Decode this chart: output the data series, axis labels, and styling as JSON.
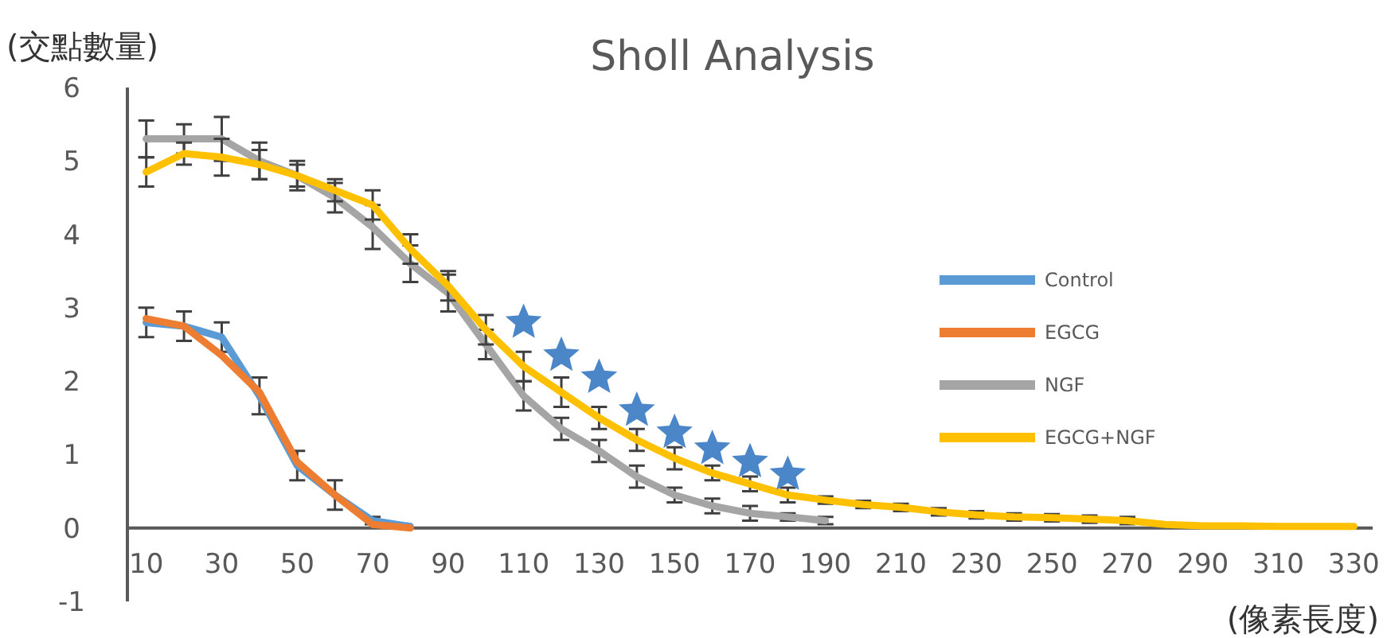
{
  "chart_data": {
    "type": "line",
    "title": "Sholl Analysis",
    "ylabel": "(交點數量)",
    "xlabel": "(像素長度)",
    "categories": [
      "10",
      null,
      "30",
      null,
      "50",
      null,
      "70",
      null,
      "90",
      null,
      "110",
      null,
      "130",
      null,
      "150",
      null,
      "170",
      null,
      "190",
      null,
      "210",
      null,
      "230",
      null,
      "250",
      null,
      "270",
      null,
      "290",
      null,
      "310",
      null,
      "330"
    ],
    "ylim": [
      -1,
      6
    ],
    "yticks": [
      -1,
      0,
      1,
      2,
      3,
      4,
      5,
      6
    ],
    "grid": false,
    "legend": "right",
    "line_style": "solid",
    "marker": "none",
    "series": [
      {
        "name": "Control",
        "color": "#5b9bd5",
        "values": [
          2.8,
          2.75,
          2.6,
          1.8,
          0.85,
          0.45,
          0.1,
          0.02,
          null,
          null,
          null,
          null,
          null,
          null,
          null,
          null,
          null,
          null,
          null,
          null,
          null,
          null,
          null,
          null,
          null,
          null,
          null,
          null,
          null,
          null,
          null,
          null,
          null
        ],
        "errors": [
          0.2,
          0.2,
          0.2,
          0.25,
          0.2,
          0.2,
          0.05,
          null,
          null,
          null,
          null,
          null,
          null,
          null,
          null,
          null,
          null,
          null,
          null,
          null,
          null,
          null,
          null,
          null,
          null,
          null,
          null,
          null,
          null,
          null,
          null,
          null,
          null
        ]
      },
      {
        "name": "EGCG",
        "color": "#ed7d31",
        "values": [
          2.85,
          2.75,
          2.35,
          1.85,
          0.9,
          0.45,
          0.05,
          0.0,
          null,
          null,
          null,
          null,
          null,
          null,
          null,
          null,
          null,
          null,
          null,
          null,
          null,
          null,
          null,
          null,
          null,
          null,
          null,
          null,
          null,
          null,
          null,
          null,
          null
        ]
      },
      {
        "name": "NGF",
        "color": "#a5a5a5",
        "values": [
          5.3,
          5.3,
          5.3,
          5.0,
          4.8,
          4.5,
          4.1,
          3.6,
          3.2,
          2.5,
          1.8,
          1.35,
          1.05,
          0.7,
          0.45,
          0.3,
          0.2,
          0.15,
          0.1,
          null,
          null,
          null,
          null,
          null,
          null,
          null,
          null,
          null,
          null,
          null,
          null,
          null,
          null
        ],
        "errors": [
          0.25,
          0.2,
          0.3,
          0.25,
          0.2,
          0.2,
          0.3,
          0.25,
          0.25,
          0.2,
          0.2,
          0.15,
          0.15,
          0.15,
          0.1,
          0.1,
          0.1,
          0.05,
          0.05,
          null,
          null,
          null,
          null,
          null,
          null,
          null,
          null,
          null,
          null,
          null,
          null,
          null,
          null
        ]
      },
      {
        "name": "EGCG+NGF",
        "color": "#ffc000",
        "values": [
          4.85,
          5.1,
          5.05,
          4.95,
          4.8,
          4.6,
          4.4,
          3.8,
          3.3,
          2.7,
          2.2,
          1.85,
          1.5,
          1.2,
          0.95,
          0.75,
          0.6,
          0.45,
          0.38,
          0.32,
          0.28,
          0.22,
          0.18,
          0.15,
          0.14,
          0.12,
          0.1,
          0.05,
          0.03,
          0.03,
          0.02,
          0.02,
          0.02
        ],
        "errors": [
          0.2,
          0.15,
          0.25,
          0.2,
          0.15,
          0.15,
          0.2,
          0.2,
          0.2,
          0.2,
          0.2,
          0.2,
          0.15,
          0.15,
          0.15,
          0.1,
          0.1,
          0.1,
          0.05,
          0.05,
          0.05,
          0.05,
          0.05,
          0.05,
          0.05,
          0.05,
          0.05,
          null,
          null,
          null,
          null,
          null,
          null
        ]
      },
      {
        "type": "scatter",
        "marker": "star",
        "color": "#4a86c8",
        "values": [
          null,
          null,
          null,
          null,
          null,
          null,
          null,
          null,
          null,
          null,
          2.8,
          2.35,
          2.05,
          1.6,
          1.3,
          1.08,
          0.9,
          0.73,
          null,
          null,
          null,
          null,
          null,
          null,
          null,
          null,
          null,
          null,
          null,
          null,
          null,
          null,
          null
        ]
      }
    ]
  }
}
